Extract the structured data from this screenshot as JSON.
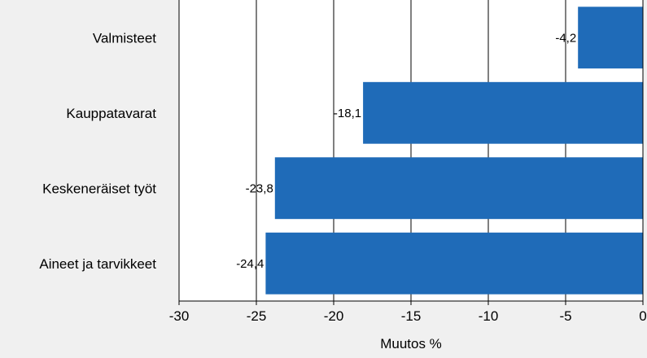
{
  "chart_data": {
    "type": "bar",
    "orientation": "horizontal",
    "categories": [
      "Valmisteet",
      "Kauppatavarat",
      "Keskeneräiset työt",
      "Aineet ja tarvikkeet"
    ],
    "values": [
      -4.2,
      -18.1,
      -23.8,
      -24.4
    ],
    "data_labels": [
      "-4,2",
      "-18,1",
      "-23,8",
      "-24,4"
    ],
    "xlabel": "Muutos %",
    "xlim": [
      -30,
      0
    ],
    "xticks": [
      -30,
      -25,
      -20,
      -15,
      -10,
      -5,
      0
    ],
    "tick_labels": [
      "-30",
      "-25",
      "-20",
      "-15",
      "-10",
      "-5",
      "0"
    ],
    "grid": true,
    "colors": {
      "bar": "#1f6bb8",
      "background": "#f0f0f0",
      "plot_background": "#ffffff",
      "grid": "#000000"
    }
  }
}
